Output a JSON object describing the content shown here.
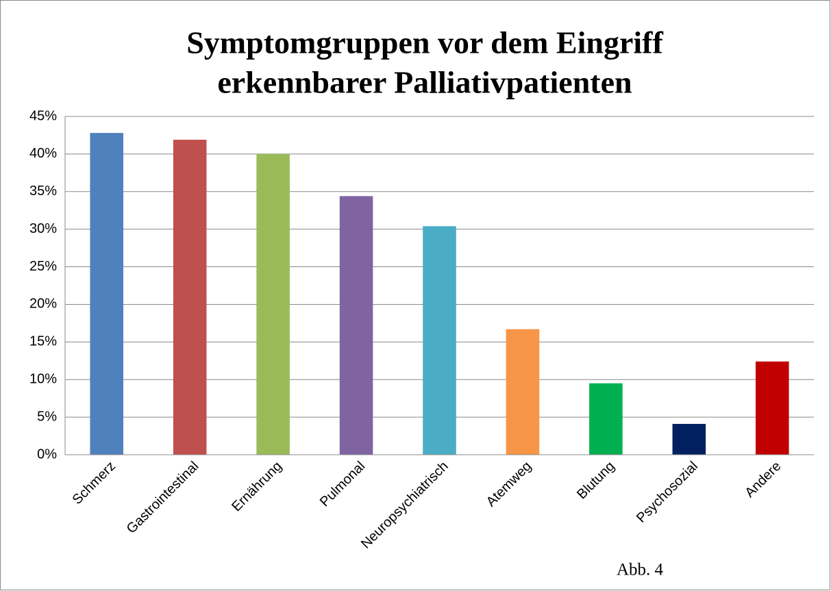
{
  "chart_data": {
    "type": "bar",
    "title": [
      "Symptomgruppen vor dem Eingriff",
      "erkennbarer Palliativpatienten"
    ],
    "categories": [
      "Schmerz",
      "Gastrointestinal",
      "Ernährung",
      "Pulmonal",
      "Neuropsychiatrisch",
      "Atemweg",
      "Blutung",
      "Psychosozial",
      "Andere"
    ],
    "values": [
      42.8,
      41.9,
      40,
      34.4,
      30.4,
      16.7,
      9.5,
      4.1,
      12.4
    ],
    "colors": [
      "#4f81bd",
      "#c0504d",
      "#9bbb59",
      "#8064a2",
      "#4bacc6",
      "#f79646",
      "#00b050",
      "#002060",
      "#c00000"
    ],
    "ylim": [
      0,
      45
    ],
    "yticks": [
      {
        "value": 0,
        "label": "0%"
      },
      {
        "value": 5,
        "label": "5%"
      },
      {
        "value": 10,
        "label": "10%"
      },
      {
        "value": 15,
        "label": "15%"
      },
      {
        "value": 20,
        "label": "20%"
      },
      {
        "value": 25,
        "label": "25%"
      },
      {
        "value": 30,
        "label": "30%"
      },
      {
        "value": 35,
        "label": "35%"
      },
      {
        "value": 40,
        "label": "40%"
      },
      {
        "value": 45,
        "label": "45%"
      }
    ],
    "grid": true,
    "annotation": "Abb. 4"
  }
}
